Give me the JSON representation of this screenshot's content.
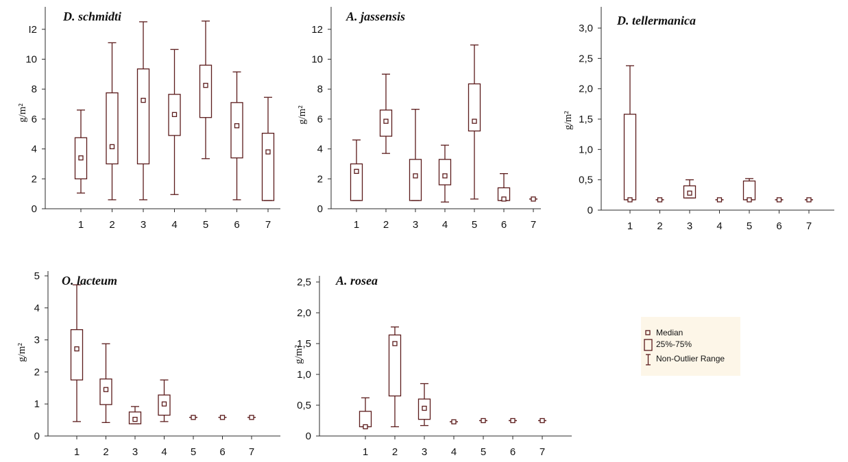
{
  "colors": {
    "box": "#5a1a1a",
    "axis": "#2a2a2a",
    "legend_bg": "#fdf6e8"
  },
  "legend": {
    "median_label": "Median",
    "quartile_label": "25%-75%",
    "range_label": "Non-Outlier Range"
  },
  "chart_data": [
    {
      "type": "box",
      "title": "D. schmidti",
      "ylabel": "g/m²",
      "ylim": [
        0,
        13.5
      ],
      "yticks": [
        0,
        2,
        4,
        6,
        8,
        10,
        12
      ],
      "ytick_labels": [
        "0",
        "2",
        "4",
        "6",
        "8",
        "10",
        "I2"
      ],
      "categories": [
        "1",
        "2",
        "3",
        "4",
        "5",
        "6",
        "7"
      ],
      "series": [
        {
          "median": 3.4,
          "q1": 2.0,
          "q3": 4.75,
          "min": 1.05,
          "max": 6.6
        },
        {
          "median": 4.15,
          "q1": 3.0,
          "q3": 7.75,
          "min": 0.6,
          "max": 11.1
        },
        {
          "median": 7.25,
          "q1": 3.0,
          "q3": 9.35,
          "min": 0.6,
          "max": 12.5
        },
        {
          "median": 6.3,
          "q1": 4.9,
          "q3": 7.65,
          "min": 0.95,
          "max": 10.65
        },
        {
          "median": 8.25,
          "q1": 6.1,
          "q3": 9.6,
          "min": 3.35,
          "max": 12.55
        },
        {
          "median": 5.55,
          "q1": 3.4,
          "q3": 7.1,
          "min": 0.6,
          "max": 9.15
        },
        {
          "median": 3.8,
          "q1": 0.55,
          "q3": 5.05,
          "min": 0.55,
          "max": 7.45
        }
      ]
    },
    {
      "type": "box",
      "title": "A. jassensis",
      "ylabel": "g/m²",
      "ylim": [
        0,
        13.5
      ],
      "yticks": [
        0,
        2,
        4,
        6,
        8,
        10,
        12
      ],
      "ytick_labels": [
        "0",
        "2",
        "4",
        "6",
        "8",
        "10",
        "12"
      ],
      "categories": [
        "1",
        "2",
        "3",
        "4",
        "5",
        "6",
        "7"
      ],
      "series": [
        {
          "median": 2.5,
          "q1": 0.55,
          "q3": 3.0,
          "min": 0.55,
          "max": 4.6
        },
        {
          "median": 5.85,
          "q1": 4.85,
          "q3": 6.6,
          "min": 3.7,
          "max": 9.0
        },
        {
          "median": 2.2,
          "q1": 0.55,
          "q3": 3.3,
          "min": 0.55,
          "max": 6.65
        },
        {
          "median": 2.2,
          "q1": 1.6,
          "q3": 3.3,
          "min": 0.45,
          "max": 4.25
        },
        {
          "median": 5.85,
          "q1": 5.2,
          "q3": 8.35,
          "min": 0.65,
          "max": 10.95
        },
        {
          "median": 0.65,
          "q1": 0.55,
          "q3": 1.4,
          "min": 0.55,
          "max": 2.35
        },
        {
          "median": 0.65,
          "q1": 0.65,
          "q3": 0.65,
          "min": 0.65,
          "max": 0.65
        }
      ]
    },
    {
      "type": "box",
      "title": "D. tellermanica",
      "ylabel": "g/m²",
      "ylim": [
        0,
        3.35
      ],
      "yticks": [
        0,
        0.5,
        1.0,
        1.5,
        2.0,
        2.5,
        3.0
      ],
      "ytick_labels": [
        "0",
        "0,5",
        "1,0",
        "1,5",
        "2,0",
        "2,5",
        "3,0"
      ],
      "categories": [
        "1",
        "2",
        "3",
        "4",
        "5",
        "6",
        "7"
      ],
      "series": [
        {
          "median": 0.17,
          "q1": 0.17,
          "q3": 1.58,
          "min": 0.17,
          "max": 2.38
        },
        {
          "median": 0.17,
          "q1": 0.17,
          "q3": 0.17,
          "min": 0.17,
          "max": 0.17
        },
        {
          "median": 0.28,
          "q1": 0.2,
          "q3": 0.4,
          "min": 0.2,
          "max": 0.5
        },
        {
          "median": 0.17,
          "q1": 0.17,
          "q3": 0.17,
          "min": 0.17,
          "max": 0.17
        },
        {
          "median": 0.17,
          "q1": 0.17,
          "q3": 0.48,
          "min": 0.17,
          "max": 0.52
        },
        {
          "median": 0.17,
          "q1": 0.17,
          "q3": 0.17,
          "min": 0.17,
          "max": 0.17
        },
        {
          "median": 0.17,
          "q1": 0.17,
          "q3": 0.17,
          "min": 0.17,
          "max": 0.17
        }
      ]
    },
    {
      "type": "box",
      "title": "O. lacteum",
      "ylabel": "g/m²",
      "ylim": [
        0,
        5.15
      ],
      "yticks": [
        0,
        1,
        2,
        3,
        4,
        5
      ],
      "ytick_labels": [
        "0",
        "1",
        "2",
        "3",
        "4",
        "5"
      ],
      "categories": [
        "1",
        "2",
        "3",
        "4",
        "5",
        "6",
        "7"
      ],
      "series": [
        {
          "median": 2.72,
          "q1": 1.75,
          "q3": 3.32,
          "min": 0.45,
          "max": 4.72
        },
        {
          "median": 1.45,
          "q1": 0.98,
          "q3": 1.78,
          "min": 0.42,
          "max": 2.88
        },
        {
          "median": 0.52,
          "q1": 0.38,
          "q3": 0.75,
          "min": 0.38,
          "max": 0.92
        },
        {
          "median": 1.0,
          "q1": 0.65,
          "q3": 1.28,
          "min": 0.45,
          "max": 1.75
        },
        {
          "median": 0.58,
          "q1": 0.58,
          "q3": 0.58,
          "min": 0.58,
          "max": 0.58
        },
        {
          "median": 0.58,
          "q1": 0.58,
          "q3": 0.58,
          "min": 0.58,
          "max": 0.58
        },
        {
          "median": 0.58,
          "q1": 0.58,
          "q3": 0.58,
          "min": 0.58,
          "max": 0.58
        }
      ]
    },
    {
      "type": "box",
      "title": "A. rosea",
      "ylabel": "g/m²",
      "ylim": [
        0,
        2.6
      ],
      "yticks": [
        0,
        0.5,
        1.0,
        1.5,
        2.0,
        2.5
      ],
      "ytick_labels": [
        "0",
        "0,5",
        "1,0",
        "1,5",
        "2,0",
        "2,5"
      ],
      "categories": [
        "1",
        "2",
        "3",
        "4",
        "5",
        "6",
        "7"
      ],
      "series": [
        {
          "median": 0.15,
          "q1": 0.15,
          "q3": 0.4,
          "min": 0.15,
          "max": 0.62
        },
        {
          "median": 1.5,
          "q1": 0.65,
          "q3": 1.64,
          "min": 0.15,
          "max": 1.77
        },
        {
          "median": 0.45,
          "q1": 0.27,
          "q3": 0.6,
          "min": 0.17,
          "max": 0.85
        },
        {
          "median": 0.23,
          "q1": 0.23,
          "q3": 0.23,
          "min": 0.23,
          "max": 0.23
        },
        {
          "median": 0.25,
          "q1": 0.25,
          "q3": 0.25,
          "min": 0.25,
          "max": 0.25
        },
        {
          "median": 0.25,
          "q1": 0.25,
          "q3": 0.25,
          "min": 0.25,
          "max": 0.25
        },
        {
          "median": 0.25,
          "q1": 0.25,
          "q3": 0.25,
          "min": 0.25,
          "max": 0.25
        }
      ]
    }
  ]
}
